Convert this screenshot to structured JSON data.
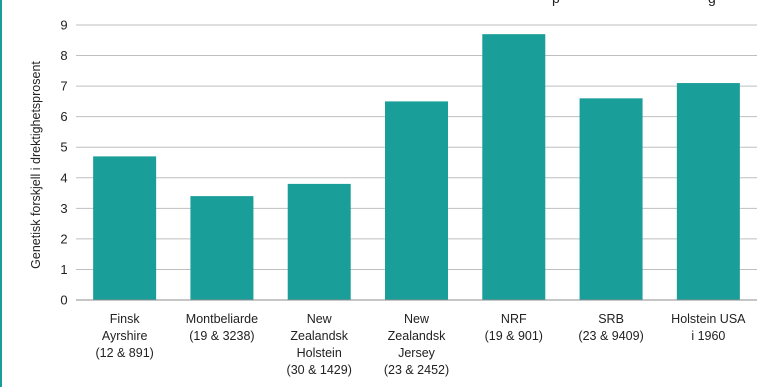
{
  "chart_data": {
    "type": "bar",
    "title_visible": "p",
    "title_visible_right": "g",
    "ylabel": "Genetisk forskjell i drektighetsprosent",
    "xlabel": "",
    "ylim": [
      0,
      9
    ],
    "yticks": [
      0,
      1,
      2,
      3,
      4,
      5,
      6,
      7,
      8,
      9
    ],
    "grid": true,
    "legend": "none",
    "categories": [
      [
        "Finsk",
        "Ayrshire",
        "(12 & 891)"
      ],
      [
        "Montbeliarde",
        "(19 & 3238)"
      ],
      [
        "New",
        "Zealandsk",
        "Holstein",
        "(30 & 1429)"
      ],
      [
        "New",
        "Zealandsk",
        "Jersey",
        "(23 & 2452)"
      ],
      [
        "NRF",
        "(19 & 901)"
      ],
      [
        "SRB",
        "(23 & 9409)"
      ],
      [
        "Holstein USA",
        "i 1960"
      ]
    ],
    "values": [
      4.7,
      3.4,
      3.8,
      6.5,
      8.7,
      6.6,
      7.1
    ]
  },
  "colors": {
    "bar": "#1a9e9a",
    "grid": "#bfbfbf",
    "axis": "#8c8c8c",
    "text": "#222222",
    "frame": "#1a9e9a"
  }
}
